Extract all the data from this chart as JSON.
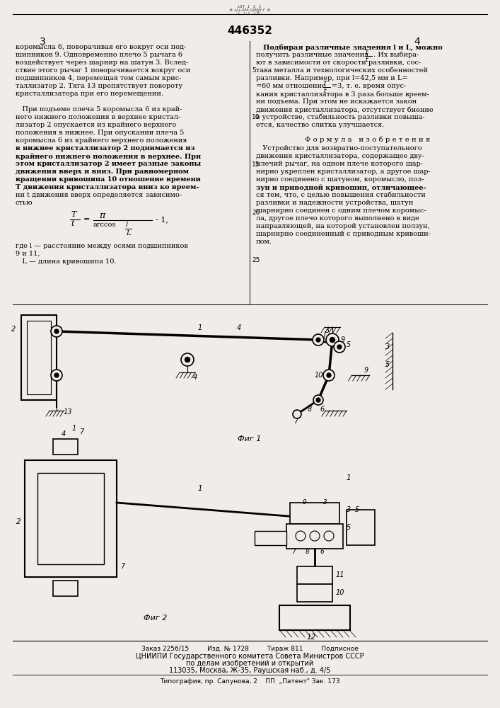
{
  "bg_color": "#f0ede8",
  "patent_number": "446352",
  "page_left": "3",
  "page_right": "4",
  "left_column_text": [
    "коромысла 6, поворачивая его вокруг оси под-",
    "шипников 9. Одновременно плечо 5 рычага 6",
    "воздействует через шарнир на шатун 3. Вслед-",
    "ствие этого рычаг 1 поворачивается вокруг оси",
    "подшипников 4, перемещая тем самым крис-",
    "таллизатор 2. Тяга 13 препятствует повороту",
    "кристаллизатора при его перемещении.",
    "",
    "   При подъеме плеча 5 коромысла 6 из край-",
    "него нижнего положения в верхнее кристал-",
    "лизатор 2 опускается из крайнего верхнего",
    "положения в нижнее. При опускании плеча 5",
    "коромысла 6 из крайнего верхнего положения",
    "в нижнее кристаллизатор 2 поднимается из",
    "крайнего нижнего положения в верхнее. При",
    "этом кристаллизатор 2 имеет разные законы",
    "движения вверх и вниз. При равномерном",
    "вращении кривошипа 10 отношение времени",
    "Т движения кристаллизатора вниз ко вреем-",
    "ни t движения вверх определяется зависимо-",
    "стью"
  ],
  "left_bold_lines": [
    13,
    14,
    15,
    16,
    17,
    18
  ],
  "left_bold_partial": {
    "1": "Одновременно"
  },
  "left_bottom_text": [
    "где l — расстояние между осями подшипников",
    "9 и 11,",
    "   L — длина кривошипа 10."
  ],
  "right_column_text": [
    "   Подбирая различные значения l и L, можно",
    "получить различные значения",
    "ют в зависимости от скорости разливки, сос-",
    "тава металла и технологических особенностей",
    "разливки. Например, при l=42,5 мм и L=",
    "=60 мм отношение",
    "кания кристаллизатора в 3 раза больше вреем-",
    "ни подъема. При этом не искажается закон",
    "движения кристаллизатора, отсутствует биение",
    "в устройстве, стабильность разливки повыша-",
    "ется, качество слитка улучшается."
  ],
  "formula_title": "Ф о р м у л а   и з о б р е т е н и я",
  "claims_text": [
    "   Устройство для возвратно-поступательного",
    "движения кристаллизатора, содержащее дву-",
    "плечий рычаг, на одном плече которого шар-",
    "нирно укреплен кристаллизатор, а другое шар-",
    "нирно соединено с шатуном, коромысло, пол-",
    "зун и приводной кривошип, отличающее-",
    "ся тем, что, с целью повышения стабильности",
    "разливки и надежности устройства, шатун",
    "шарнирно соединен с одним плечом коромыс-",
    "ла, другое плечо которого выполнено в виде",
    "направляющей, на которой установлен ползун,",
    "шарнирно соединенный с приводным кривоши-",
    "пом."
  ],
  "claims_bold_lines": [
    5
  ],
  "fig1_label": "Фиг 1",
  "fig2_label": "Фиг 2",
  "footer_line1": "Заказ 2256/15         Изд. № 1728         Тираж 811         Подписное",
  "footer_line2": "ЦНИИПИ Государственного комитета Совета Министров СССР",
  "footer_line3": "по делам изобретений и открытий",
  "footer_line4": "113035, Москва, Ж-35, Раушская наб., д. 4/5",
  "footer_line5": "Типография, пр. Сапунова, 2    ПП  „Патент\" Зак. 173"
}
